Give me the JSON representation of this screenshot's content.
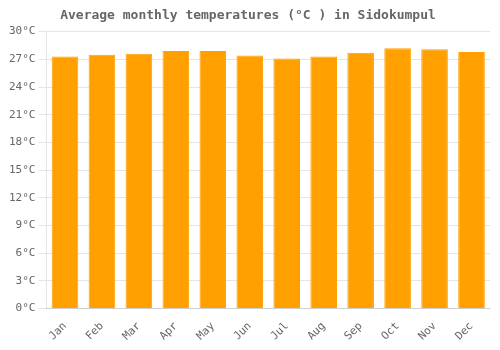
{
  "chart_data": {
    "type": "bar",
    "title": "Average monthly temperatures (°C ) in Sidokumpul",
    "categories": [
      "Jan",
      "Feb",
      "Mar",
      "Apr",
      "May",
      "Jun",
      "Jul",
      "Aug",
      "Sep",
      "Oct",
      "Nov",
      "Dec"
    ],
    "values": [
      27.3,
      27.5,
      27.6,
      27.9,
      27.9,
      27.4,
      27.1,
      27.3,
      27.7,
      28.2,
      28.1,
      27.8
    ],
    "color": "#FFA000",
    "ylim": [
      0,
      30
    ],
    "yticks": [
      {
        "value": 0,
        "label": "0°C"
      },
      {
        "value": 3,
        "label": "3°C"
      },
      {
        "value": 6,
        "label": "6°C"
      },
      {
        "value": 9,
        "label": "9°C"
      },
      {
        "value": 12,
        "label": "12°C"
      },
      {
        "value": 15,
        "label": "15°C"
      },
      {
        "value": 18,
        "label": "18°C"
      },
      {
        "value": 21,
        "label": "21°C"
      },
      {
        "value": 24,
        "label": "24°C"
      },
      {
        "value": 27,
        "label": "27°C"
      },
      {
        "value": 30,
        "label": "30°C"
      }
    ],
    "grid": true
  }
}
